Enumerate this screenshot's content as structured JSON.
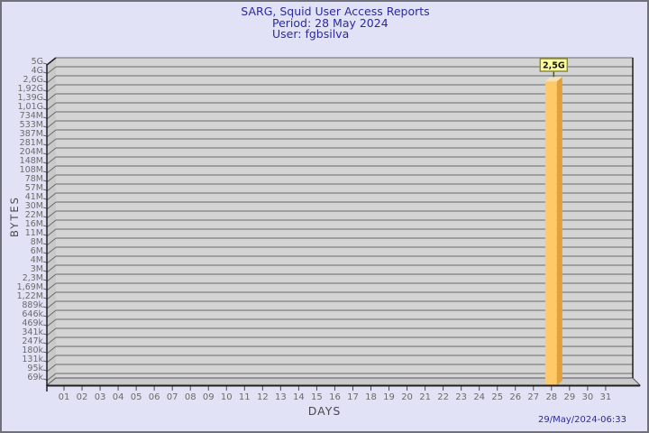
{
  "header": {
    "title": "SARG, Squid User Access Reports",
    "period": "Period: 28 May 2024",
    "user": "User: fgbsilva"
  },
  "footer": {
    "generated_at": "29/May/2024-06:33"
  },
  "chart_data": {
    "type": "bar",
    "title": "SARG, Squid User Access Reports",
    "subtitle": "Period: 28 May 2024",
    "user": "User: fgbsilva",
    "xlabel": "DAYS",
    "ylabel": "BYTES",
    "scale": "logarithmic",
    "grid": true,
    "x_categories": [
      "01",
      "02",
      "03",
      "04",
      "05",
      "06",
      "07",
      "08",
      "09",
      "10",
      "11",
      "12",
      "13",
      "14",
      "15",
      "16",
      "17",
      "18",
      "19",
      "20",
      "21",
      "22",
      "23",
      "24",
      "25",
      "26",
      "27",
      "28",
      "29",
      "30",
      "31"
    ],
    "y_tick_labels": [
      "5G",
      "4G",
      "2,6G",
      "1,92G",
      "1,39G",
      "1,01G",
      "734M",
      "533M",
      "387M",
      "281M",
      "204M",
      "148M",
      "108M",
      "78M",
      "57M",
      "41M",
      "30M",
      "22M",
      "16M",
      "11M",
      "8M",
      "6M",
      "4M",
      "3M",
      "2,3M",
      "1,69M",
      "1,22M",
      "889k",
      "646k",
      "469k",
      "341k",
      "247k",
      "180k",
      "131k",
      "95k",
      "69k"
    ],
    "series": [
      {
        "name": "fgbsilva",
        "points": [
          {
            "x": "28",
            "label": "2,5G",
            "value": 2500000000
          }
        ]
      }
    ],
    "colors": {
      "plot_bg": "#d4d4d4",
      "wall": "#c9c9c9",
      "gridline": "#6a6a6a",
      "frame": "#1f1f1f",
      "tick_text": "#6b6b6b",
      "bar_front": "#fec966",
      "bar_top": "#f2e2b4",
      "bar_side": "#dfa13e",
      "value_box_bg": "#ffffa0",
      "value_box_border": "#8b8b3a",
      "value_text": "#111111",
      "title_text": "#2b2b9d"
    }
  }
}
